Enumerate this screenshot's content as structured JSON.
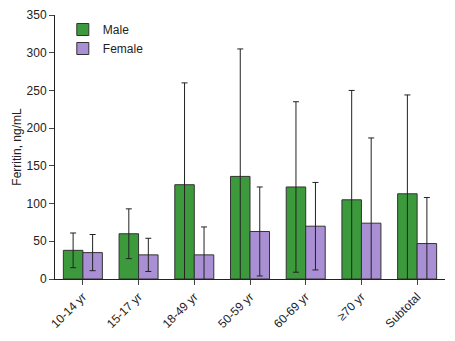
{
  "chart_data": {
    "type": "bar",
    "y_label": "Ferritin, ng/mL",
    "categories": [
      "10-14 yr",
      "15-17 yr",
      "18-49 yr",
      "50-59 yr",
      "60-69 yr",
      "≥70 yr",
      "Subtotal"
    ],
    "series": [
      {
        "name": "Male",
        "color": "#3c9a3c",
        "values": [
          38,
          60,
          125,
          136,
          122,
          105,
          113
        ],
        "error": [
          23,
          33,
          135,
          169,
          113,
          145,
          131
        ]
      },
      {
        "name": "Female",
        "color": "#a98fd3",
        "values": [
          35,
          32,
          32,
          63,
          70,
          74,
          47
        ],
        "error": [
          24,
          22,
          37,
          59,
          58,
          113,
          61
        ]
      }
    ],
    "ylim": [
      0,
      350
    ],
    "yticks": [
      0,
      50,
      100,
      150,
      200,
      250,
      300,
      350
    ],
    "grid": false,
    "legend": "top left"
  }
}
